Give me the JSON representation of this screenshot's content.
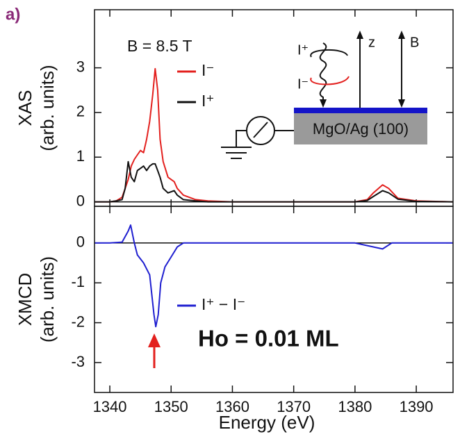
{
  "panel_label": "a)",
  "chart_data": [
    {
      "type": "line",
      "ylabel": [
        "XAS",
        "(arb. units)"
      ],
      "annotation": "B = 8.5 T",
      "inset": {
        "wave_top": "I⁺",
        "wave_bottom": "I⁻",
        "z_axis": "z",
        "field_axis": "B",
        "substrate": "MgO/Ag (100)"
      },
      "x": [
        1337.5,
        1340,
        1341,
        1342,
        1342.5,
        1343,
        1343.5,
        1344,
        1344.5,
        1345,
        1345.5,
        1346,
        1346.5,
        1347,
        1347.4,
        1347.8,
        1348.2,
        1348.7,
        1349.5,
        1350.5,
        1351,
        1352,
        1354,
        1356,
        1360,
        1370,
        1380,
        1382,
        1383,
        1384.5,
        1385.5,
        1387,
        1390,
        1396
      ],
      "series": [
        {
          "name": "I⁻",
          "color": "#e3201e",
          "values": [
            0,
            0,
            0.02,
            0.1,
            0.3,
            0.5,
            0.8,
            0.95,
            1.05,
            1.15,
            1.1,
            1.4,
            1.8,
            2.4,
            2.98,
            2.5,
            1.4,
            0.9,
            0.55,
            0.45,
            0.3,
            0.15,
            0.05,
            0.02,
            0,
            0,
            0,
            0.05,
            0.2,
            0.38,
            0.3,
            0.08,
            0.02,
            0
          ]
        },
        {
          "name": "I⁺",
          "color": "#111111",
          "values": [
            0,
            0,
            0.02,
            0.05,
            0.3,
            0.9,
            0.55,
            0.45,
            0.7,
            0.75,
            0.8,
            0.7,
            0.8,
            0.85,
            0.85,
            0.7,
            0.55,
            0.3,
            0.2,
            0.25,
            0.15,
            0.05,
            0.02,
            0,
            0,
            0,
            0,
            0.03,
            0.12,
            0.25,
            0.2,
            0.06,
            0.01,
            0
          ]
        }
      ],
      "xlim": [
        1337.5,
        1396
      ],
      "ylim": [
        -0.1,
        4.3
      ],
      "yticks": [
        0,
        1,
        2,
        3
      ]
    },
    {
      "type": "line",
      "ylabel": [
        "XMCD",
        "(arb. units)"
      ],
      "xlabel": "Energy (eV)",
      "annotation": "Ho = 0.01 ML",
      "x": [
        1337.5,
        1340,
        1342,
        1343,
        1343.4,
        1344,
        1344.5,
        1345.5,
        1346.5,
        1347.2,
        1347.5,
        1347.9,
        1348.3,
        1349,
        1350,
        1351,
        1352,
        1360,
        1370,
        1380,
        1383,
        1384.5,
        1386,
        1390,
        1396
      ],
      "series": [
        {
          "name": "I⁺ − I⁻",
          "color": "#1f1fd0",
          "values": [
            0,
            0,
            0.02,
            0.3,
            0.45,
            0,
            -0.3,
            -0.5,
            -0.8,
            -1.8,
            -2.1,
            -1.8,
            -1,
            -0.6,
            -0.35,
            -0.1,
            0,
            0,
            0,
            0,
            -0.1,
            -0.15,
            0,
            0,
            0
          ]
        }
      ],
      "xlim": [
        1337.5,
        1396
      ],
      "ylim": [
        -3.75,
        0.92
      ],
      "yticks": [
        0,
        -1,
        -2,
        -3
      ],
      "xticks": [
        1340,
        1350,
        1360,
        1370,
        1380,
        1390
      ]
    }
  ]
}
